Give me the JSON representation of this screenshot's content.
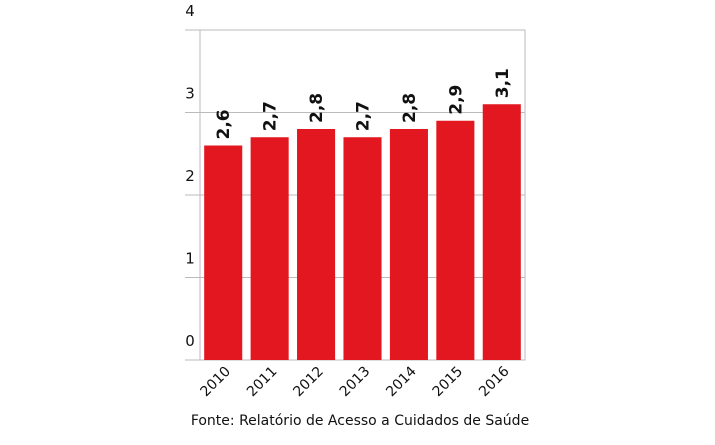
{
  "chart_data": {
    "type": "bar",
    "categories": [
      "2010",
      "2011",
      "2012",
      "2013",
      "2014",
      "2015",
      "2016"
    ],
    "values": [
      2.6,
      2.7,
      2.8,
      2.7,
      2.8,
      2.9,
      3.1
    ],
    "value_labels": [
      "2,6",
      "2,7",
      "2,8",
      "2,7",
      "2,8",
      "2,9",
      "3,1"
    ],
    "color": "#e2171f",
    "ylim": [
      0,
      4
    ],
    "yticks": [
      0,
      1,
      2,
      3,
      4
    ],
    "grid": true,
    "source": "Fonte: Relatório de Acesso a Cuidados de Saúde"
  }
}
